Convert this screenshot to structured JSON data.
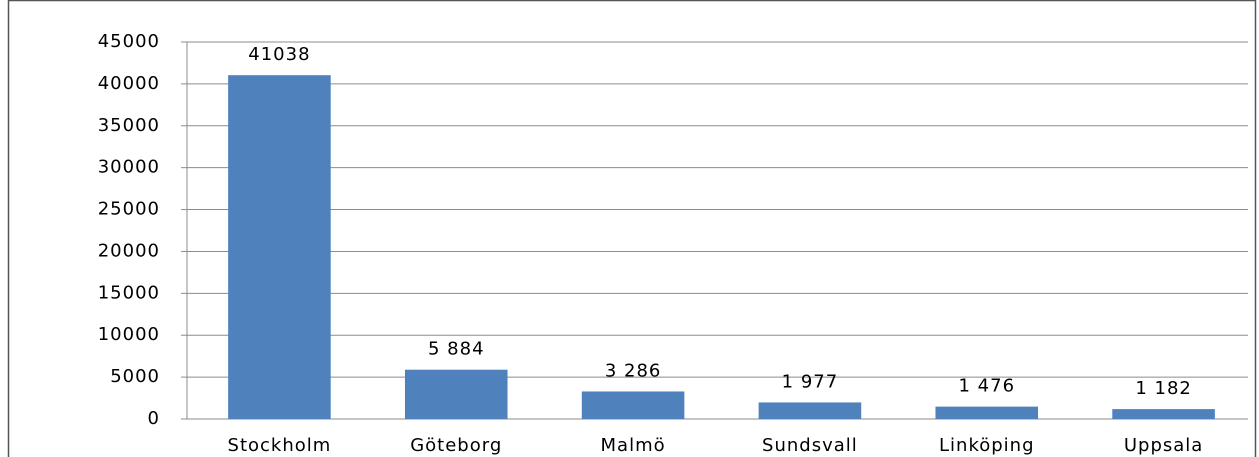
{
  "chart_data": {
    "type": "bar",
    "categories": [
      "Stockholm",
      "Göteborg",
      "Malmö",
      "Sundsvall",
      "Linköping",
      "Uppsala"
    ],
    "values": [
      41038,
      5884,
      3286,
      1977,
      1476,
      1182
    ],
    "value_labels": [
      "41038",
      "5 884",
      "3 286",
      "1 977",
      "1 476",
      "1 182"
    ],
    "color": "#4f81bd",
    "ylim": [
      0,
      45000
    ],
    "yticks": [
      0,
      5000,
      10000,
      15000,
      20000,
      25000,
      30000,
      35000,
      40000,
      45000
    ],
    "grid": true
  }
}
